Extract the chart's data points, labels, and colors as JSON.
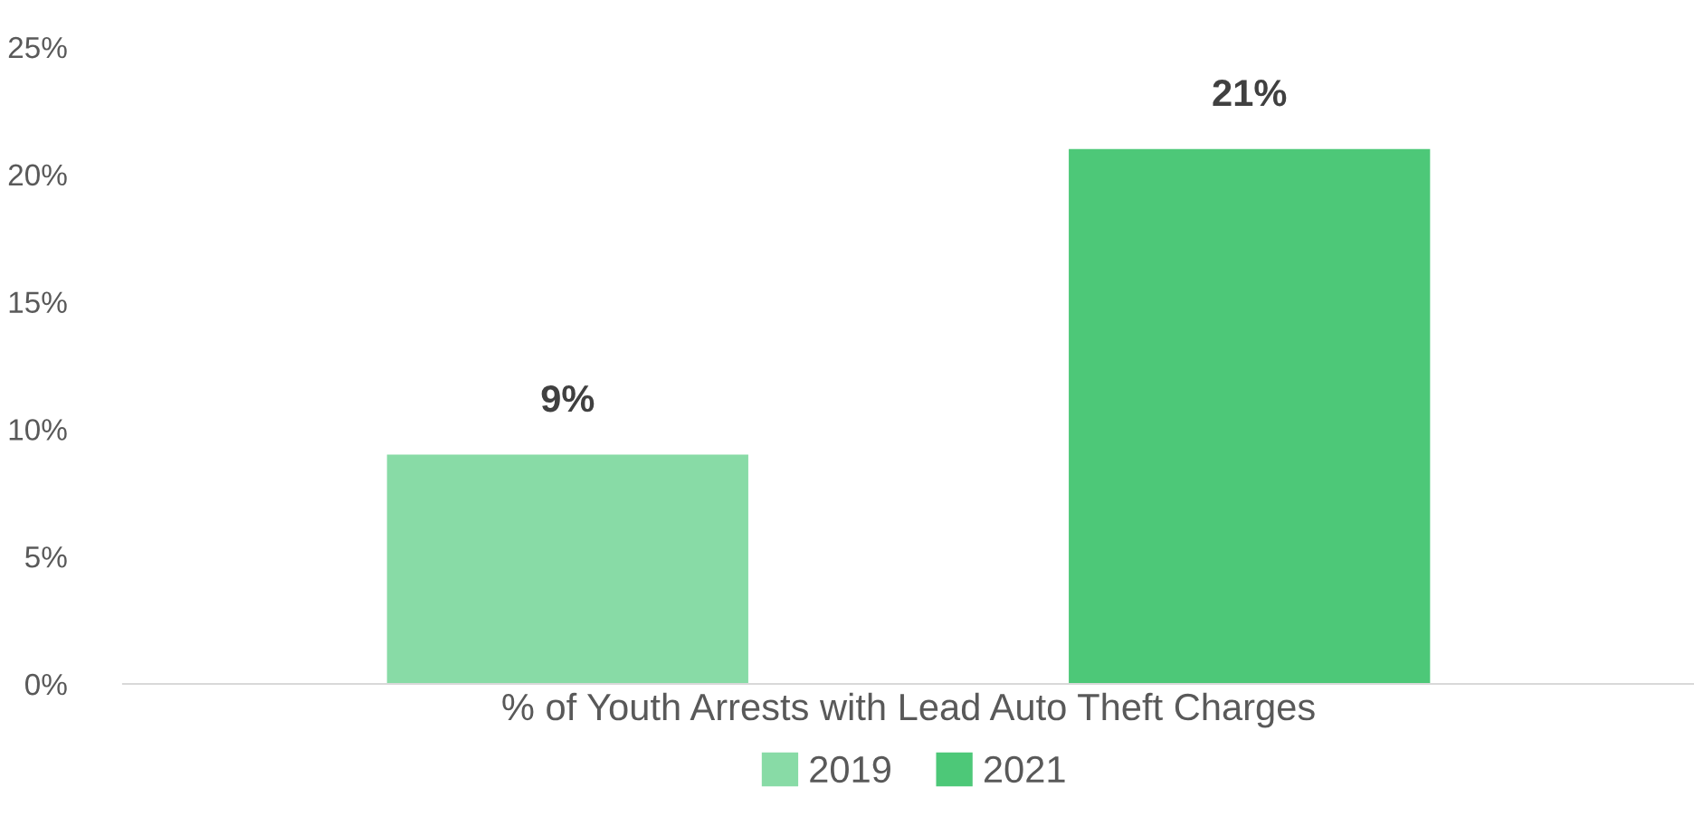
{
  "chart_data": {
    "type": "bar",
    "categories": [
      "% of Youth Arrests with Lead Auto Theft Charges"
    ],
    "series": [
      {
        "name": "2019",
        "color": "#88dba6",
        "values": [
          9
        ],
        "value_labels": [
          "9%"
        ]
      },
      {
        "name": "2021",
        "color": "#4dc878",
        "values": [
          21
        ],
        "value_labels": [
          "21%"
        ]
      }
    ],
    "ylim": [
      0,
      25
    ],
    "yticks": [
      {
        "value": 0,
        "label": "0%"
      },
      {
        "value": 5,
        "label": "5%"
      },
      {
        "value": 10,
        "label": "10%"
      },
      {
        "value": 15,
        "label": "15%"
      },
      {
        "value": 20,
        "label": "20%"
      },
      {
        "value": 25,
        "label": "25%"
      }
    ],
    "grid": false,
    "legend": "bottom"
  }
}
